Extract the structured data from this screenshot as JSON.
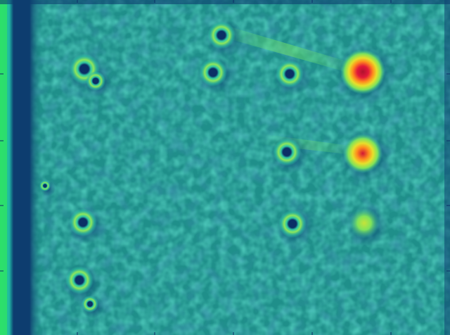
{
  "image": {
    "kind": "false-color intensity map",
    "colormap": [
      "#0b3f74",
      "#1c8fa0",
      "#2fc7a3",
      "#7fe35a",
      "#e6e02b",
      "#ff8a1e",
      "#e2183a"
    ],
    "background_color": "#1f8f8a",
    "edge_strip_color": "#2de06a",
    "dark_band_color": "#0d3d6f"
  },
  "spots": [
    {
      "id": "spot-1",
      "intensity": "low"
    },
    {
      "id": "spot-2",
      "intensity": "low"
    },
    {
      "id": "spot-3",
      "intensity": "low"
    },
    {
      "id": "spot-4",
      "intensity": "low"
    },
    {
      "id": "spot-5",
      "intensity": "low"
    },
    {
      "id": "spot-6",
      "intensity": "low"
    },
    {
      "id": "spot-7",
      "intensity": "low"
    },
    {
      "id": "spot-8",
      "intensity": "low"
    },
    {
      "id": "spot-9",
      "intensity": "low"
    },
    {
      "id": "spot-10",
      "intensity": "very-high"
    },
    {
      "id": "spot-11",
      "intensity": "high"
    },
    {
      "id": "spot-12",
      "intensity": "medium"
    },
    {
      "id": "spot-13",
      "intensity": "low"
    },
    {
      "id": "spot-14",
      "intensity": "low"
    }
  ]
}
